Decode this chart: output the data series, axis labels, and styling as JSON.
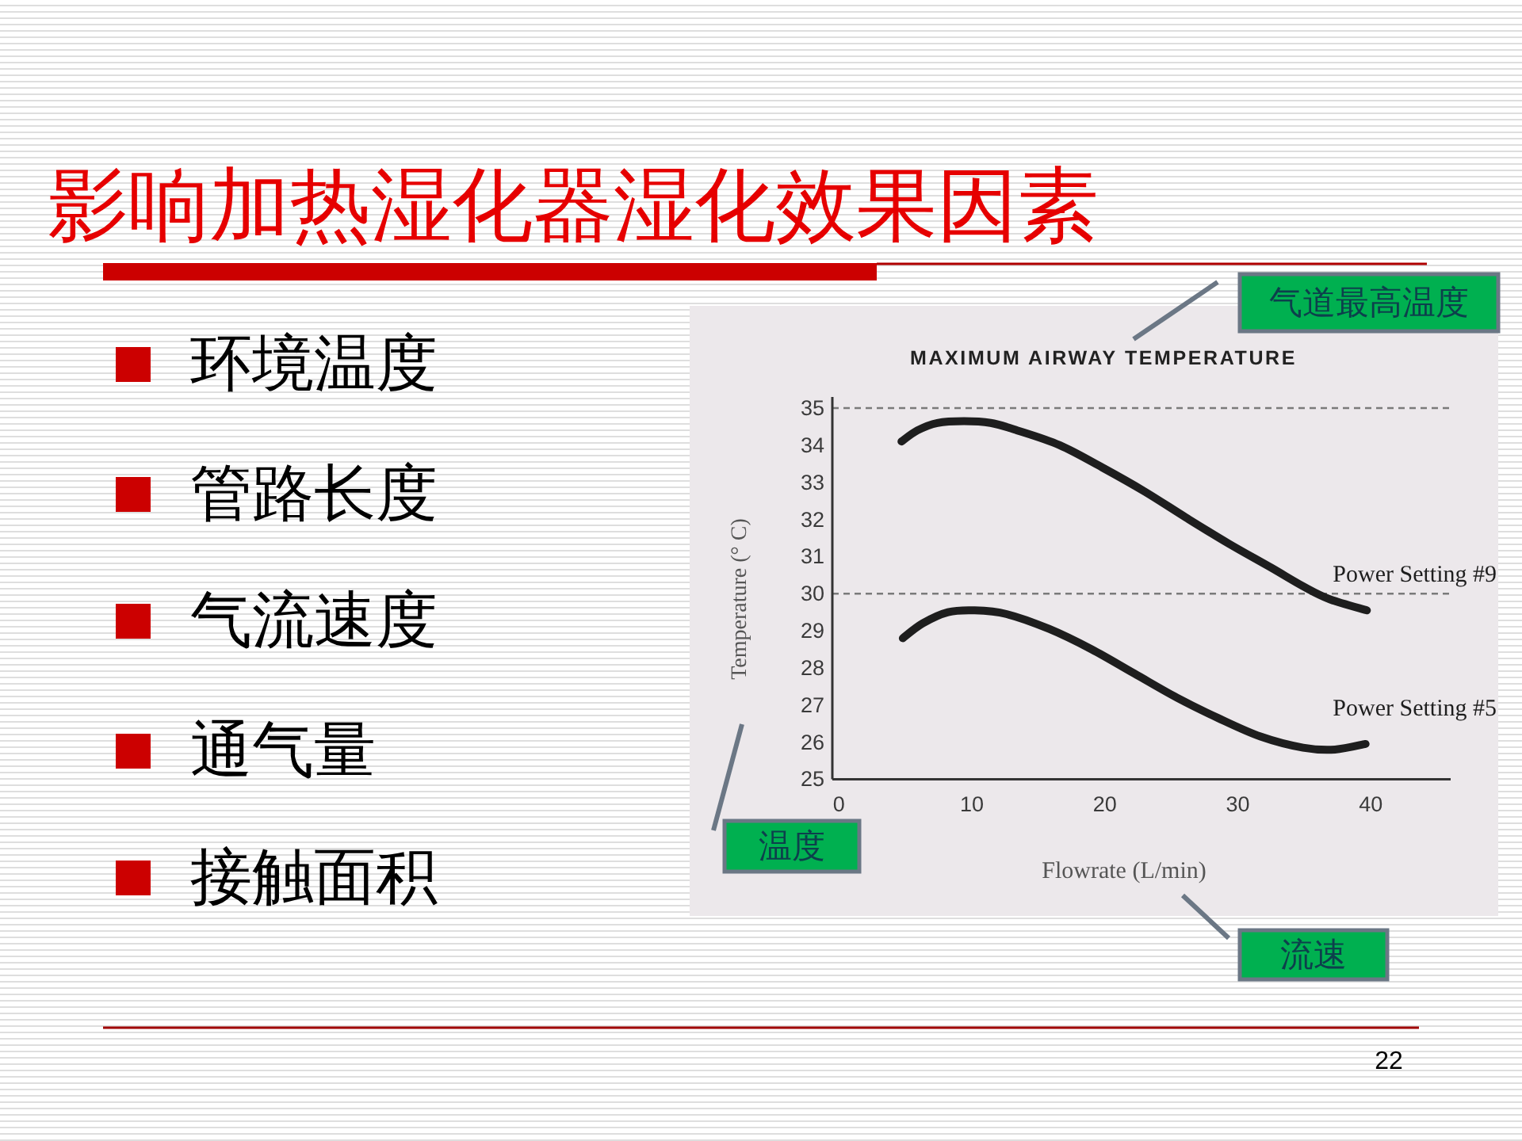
{
  "chart_data": {
    "type": "line",
    "title": "影响加热湿化器湿化效果因素",
    "subtitle": "MAXIMUM AIRWAY TEMPERATURE",
    "xlabel": "Flowrate (L/min)",
    "ylabel": "Temperature (° C)",
    "xlim": [
      -0.5,
      46
    ],
    "ylim": [
      25,
      35.3
    ],
    "xticks": [
      0,
      10,
      20,
      30,
      40
    ],
    "yticks": [
      25,
      26,
      27,
      28,
      29,
      30,
      31,
      32,
      33,
      34,
      35
    ],
    "line_style": "solid",
    "ref_lines": [
      {
        "axis": "y",
        "value": 35,
        "color": "#7a7a7a",
        "line_style": "dashed"
      },
      {
        "axis": "y",
        "value": 30,
        "color": "#7a7a7a",
        "line_style": "dashed"
      }
    ],
    "series": [
      {
        "name": "Power Setting #9",
        "color": "#1e1e1e",
        "x": [
          4.7,
          5.9,
          7.4,
          9.4,
          11.4,
          13.4,
          16.6,
          19.8,
          23.0,
          26.1,
          29.3,
          32.5,
          34.9,
          36.9,
          39.7
        ],
        "values": [
          34.1,
          34.4,
          34.6,
          34.65,
          34.6,
          34.4,
          34.0,
          33.4,
          32.75,
          32.05,
          31.35,
          30.7,
          30.2,
          29.85,
          29.55
        ]
      },
      {
        "name": "Power Setting #5",
        "color": "#1e1e1e",
        "x": [
          4.8,
          6.3,
          8.2,
          10.2,
          12.6,
          15.8,
          19.0,
          22.2,
          25.4,
          28.5,
          31.7,
          34.9,
          37.3,
          39.6
        ],
        "values": [
          28.8,
          29.2,
          29.5,
          29.55,
          29.45,
          29.05,
          28.5,
          27.85,
          27.2,
          26.65,
          26.15,
          25.85,
          25.8,
          25.95
        ]
      }
    ],
    "annotations": [
      "环境温度",
      "管路长度",
      "气流速度",
      "通气量",
      "接触面积",
      "气道最高温度",
      "温度",
      "流速",
      "22"
    ]
  }
}
